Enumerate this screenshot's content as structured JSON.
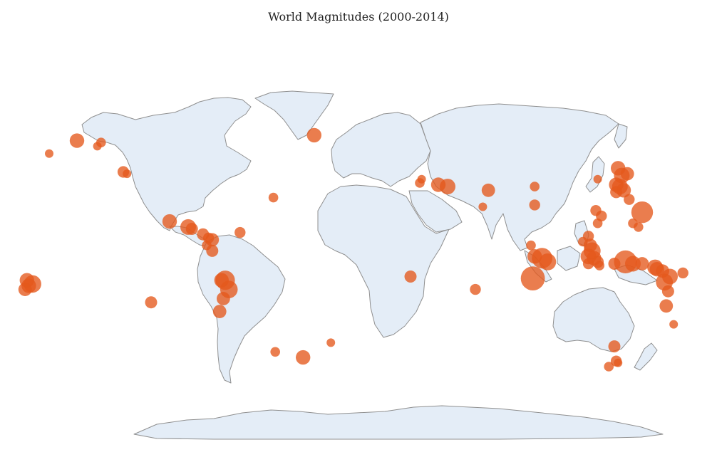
{
  "title": "World Magnitudes (2000-2014)",
  "colors": {
    "land": "#e4edf7",
    "coast": "#8f8f8f",
    "marker": "#e4581c"
  },
  "chart_data": {
    "type": "scatter",
    "projection": "equirectangular",
    "lon_range": [
      -180,
      180
    ],
    "lat_range": [
      -90,
      90
    ],
    "title": "World Magnitudes (2000-2014)",
    "points": [
      {
        "lon": -139,
        "lat": 58,
        "mag": 6.0
      },
      {
        "lon": -150,
        "lat": 61,
        "mag": 7.0
      },
      {
        "lon": -137,
        "lat": 60,
        "mag": 6.2
      },
      {
        "lon": -125,
        "lat": 44,
        "mag": 6.5
      },
      {
        "lon": -123,
        "lat": 43,
        "mag": 6.0
      },
      {
        "lon": -22,
        "lat": 64,
        "mag": 7.0
      },
      {
        "lon": -100,
        "lat": 17,
        "mag": 7.0
      },
      {
        "lon": -90,
        "lat": 14,
        "mag": 7.2
      },
      {
        "lon": -88,
        "lat": 13,
        "mag": 6.6
      },
      {
        "lon": -82,
        "lat": 10,
        "mag": 6.6
      },
      {
        "lon": -79,
        "lat": 8,
        "mag": 6.4
      },
      {
        "lon": -77,
        "lat": 7,
        "mag": 6.8
      },
      {
        "lon": -80,
        "lat": 4,
        "mag": 6.2
      },
      {
        "lon": -77,
        "lat": 1,
        "mag": 6.6
      },
      {
        "lon": -62,
        "lat": 11,
        "mag": 6.4
      },
      {
        "lon": -44,
        "lat": 30,
        "mag": 6.2
      },
      {
        "lon": -165,
        "lat": 54,
        "mag": 6.0
      },
      {
        "lon": -177,
        "lat": -15,
        "mag": 7.0
      },
      {
        "lon": -174,
        "lat": -17,
        "mag": 7.5
      },
      {
        "lon": -176,
        "lat": -18,
        "mag": 7.0
      },
      {
        "lon": -178,
        "lat": -20,
        "mag": 6.8
      },
      {
        "lon": -72,
        "lat": -15,
        "mag": 7.0
      },
      {
        "lon": -70,
        "lat": -15,
        "mag": 7.8
      },
      {
        "lon": -68,
        "lat": -20,
        "mag": 7.5
      },
      {
        "lon": -71,
        "lat": -25,
        "mag": 6.8
      },
      {
        "lon": -73,
        "lat": -32,
        "mag": 6.8
      },
      {
        "lon": -110,
        "lat": -27,
        "mag": 6.6
      },
      {
        "lon": -43,
        "lat": -54,
        "mag": 6.2
      },
      {
        "lon": -28,
        "lat": -57,
        "mag": 7.0
      },
      {
        "lon": -13,
        "lat": -49,
        "mag": 6.0
      },
      {
        "lon": 30,
        "lat": -13,
        "mag": 6.6
      },
      {
        "lon": 65,
        "lat": -20,
        "mag": 6.4
      },
      {
        "lon": 36,
        "lat": 40,
        "mag": 6.0
      },
      {
        "lon": 35,
        "lat": 38,
        "mag": 6.2
      },
      {
        "lon": 45,
        "lat": 37,
        "mag": 7.0
      },
      {
        "lon": 50,
        "lat": 36,
        "mag": 7.2
      },
      {
        "lon": 72,
        "lat": 34,
        "mag": 6.8
      },
      {
        "lon": 69,
        "lat": 25,
        "mag": 6.0
      },
      {
        "lon": 97,
        "lat": 36,
        "mag": 6.2
      },
      {
        "lon": 97,
        "lat": 26,
        "mag": 6.4
      },
      {
        "lon": 142,
        "lat": 46,
        "mag": 7.0
      },
      {
        "lon": 144,
        "lat": 42,
        "mag": 7.2
      },
      {
        "lon": 147,
        "lat": 43,
        "mag": 6.8
      },
      {
        "lon": 131,
        "lat": 40,
        "mag": 6.0
      },
      {
        "lon": 141,
        "lat": 37,
        "mag": 7.0
      },
      {
        "lon": 143,
        "lat": 36,
        "mag": 7.2
      },
      {
        "lon": 145,
        "lat": 34,
        "mag": 7.0
      },
      {
        "lon": 141,
        "lat": 33,
        "mag": 6.6
      },
      {
        "lon": 148,
        "lat": 29,
        "mag": 6.4
      },
      {
        "lon": 155,
        "lat": 22,
        "mag": 8.2
      },
      {
        "lon": 130,
        "lat": 23,
        "mag": 6.4
      },
      {
        "lon": 133,
        "lat": 20,
        "mag": 6.4
      },
      {
        "lon": 131,
        "lat": 16,
        "mag": 6.2
      },
      {
        "lon": 150,
        "lat": 16,
        "mag": 6.2
      },
      {
        "lon": 153,
        "lat": 14,
        "mag": 6.2
      },
      {
        "lon": 126,
        "lat": 9,
        "mag": 6.4
      },
      {
        "lon": 123,
        "lat": 6,
        "mag": 6.2
      },
      {
        "lon": 127,
        "lat": 4,
        "mag": 6.8
      },
      {
        "lon": 128,
        "lat": 1,
        "mag": 7.4
      },
      {
        "lon": 126,
        "lat": -2,
        "mag": 7.2
      },
      {
        "lon": 129,
        "lat": -3,
        "mag": 7.0
      },
      {
        "lon": 131,
        "lat": -5,
        "mag": 6.6
      },
      {
        "lon": 95,
        "lat": 4,
        "mag": 6.2
      },
      {
        "lon": 101,
        "lat": -3,
        "mag": 8.0
      },
      {
        "lon": 104,
        "lat": -5,
        "mag": 7.4
      },
      {
        "lon": 97,
        "lat": -2,
        "mag": 7.0
      },
      {
        "lon": 96,
        "lat": -14,
        "mag": 8.6
      },
      {
        "lon": 126,
        "lat": -6,
        "mag": 6.4
      },
      {
        "lon": 132,
        "lat": -7,
        "mag": 6.2
      },
      {
        "lon": 140,
        "lat": -6,
        "mag": 6.6
      },
      {
        "lon": 146,
        "lat": -5,
        "mag": 8.4
      },
      {
        "lon": 150,
        "lat": -6,
        "mag": 7.2
      },
      {
        "lon": 155,
        "lat": -6,
        "mag": 6.8
      },
      {
        "lon": 162,
        "lat": -8,
        "mag": 7.2
      },
      {
        "lon": 163,
        "lat": -9,
        "mag": 7.0
      },
      {
        "lon": 166,
        "lat": -10,
        "mag": 6.8
      },
      {
        "lon": 170,
        "lat": -13,
        "mag": 7.2
      },
      {
        "lon": 167,
        "lat": -16,
        "mag": 7.4
      },
      {
        "lon": 177,
        "lat": -11,
        "mag": 6.4
      },
      {
        "lon": 169,
        "lat": -21,
        "mag": 6.6
      },
      {
        "lon": 168,
        "lat": -29,
        "mag": 6.8
      },
      {
        "lon": 172,
        "lat": -39,
        "mag": 6.0
      },
      {
        "lon": 140,
        "lat": -51,
        "mag": 6.6
      },
      {
        "lon": 141,
        "lat": -59,
        "mag": 6.4
      },
      {
        "lon": 137,
        "lat": -62,
        "mag": 6.2
      },
      {
        "lon": 142,
        "lat": -60,
        "mag": 6.0
      }
    ]
  }
}
